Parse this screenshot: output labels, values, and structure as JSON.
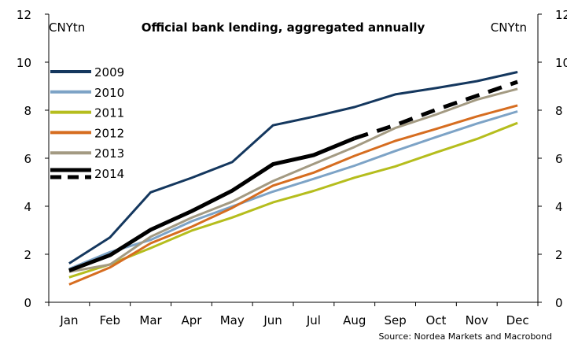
{
  "chart_data": {
    "type": "line",
    "title": "Official bank lending, aggregated annually",
    "ylabel_left": "CNYtn",
    "ylabel_right": "CNYtn",
    "source": "Source: Nordea Markets and Macrobond",
    "categories": [
      "Jan",
      "Feb",
      "Mar",
      "Apr",
      "May",
      "Jun",
      "Jul",
      "Aug",
      "Sep",
      "Oct",
      "Nov",
      "Dec"
    ],
    "ylim": [
      0,
      12
    ],
    "yticks": [
      0,
      2,
      4,
      6,
      8,
      10,
      12
    ],
    "legend_position": "top-left",
    "grid": false,
    "series": [
      {
        "name": "2009",
        "color": "#14375e",
        "style": "solid",
        "values": [
          1.62,
          2.7,
          4.58,
          5.18,
          5.84,
          7.37,
          7.73,
          8.13,
          8.66,
          8.92,
          9.21,
          9.59
        ]
      },
      {
        "name": "2010",
        "color": "#7da3c6",
        "style": "solid",
        "values": [
          1.39,
          2.09,
          2.6,
          3.37,
          3.99,
          4.61,
          5.14,
          5.69,
          6.3,
          6.88,
          7.44,
          7.95
        ]
      },
      {
        "name": "2011",
        "color": "#b5bd1d",
        "style": "solid",
        "values": [
          1.04,
          1.58,
          2.26,
          2.98,
          3.53,
          4.16,
          4.64,
          5.19,
          5.66,
          6.24,
          6.8,
          7.47
        ]
      },
      {
        "name": "2012",
        "color": "#d66d20",
        "style": "solid",
        "values": [
          0.74,
          1.45,
          2.46,
          3.14,
          3.93,
          4.86,
          5.4,
          6.1,
          6.72,
          7.22,
          7.74,
          8.2
        ]
      },
      {
        "name": "2013",
        "color": "#a39a82",
        "style": "solid",
        "values": [
          1.27,
          1.57,
          2.73,
          3.52,
          4.19,
          5.05,
          5.76,
          6.47,
          7.26,
          7.82,
          8.44,
          8.89
        ]
      },
      {
        "name": "2014",
        "color": "#000000",
        "style": "solid",
        "values": [
          1.32,
          1.96,
          3.02,
          3.79,
          4.65,
          5.75,
          6.13,
          6.83,
          null,
          null,
          null,
          null
        ]
      },
      {
        "name": "2014",
        "color": "#000000",
        "style": "dashed",
        "in_legend": false,
        "values": [
          null,
          null,
          null,
          null,
          null,
          null,
          null,
          6.83,
          7.38,
          8.02,
          8.6,
          9.18
        ]
      }
    ]
  }
}
